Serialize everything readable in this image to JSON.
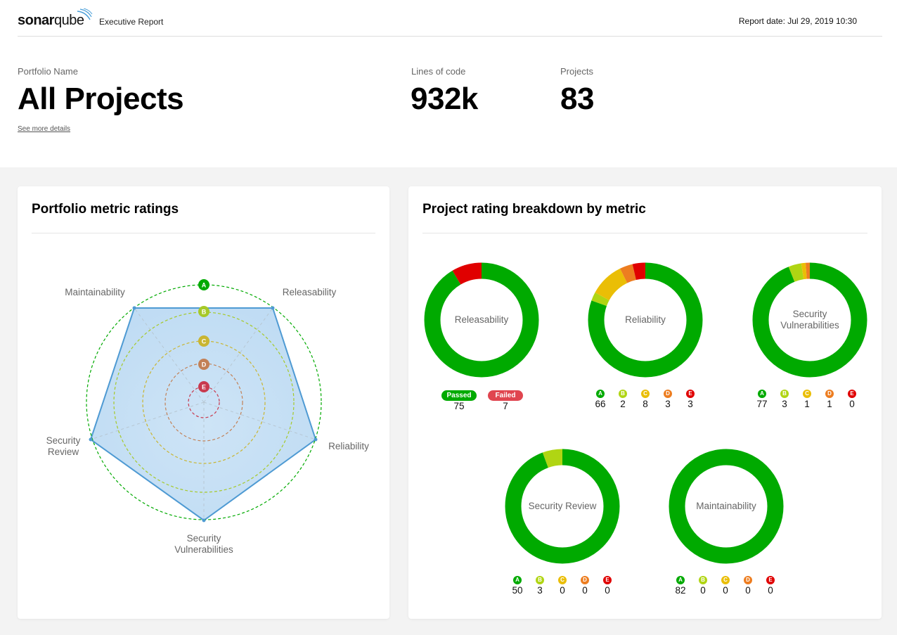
{
  "header": {
    "logo_bold": "sonar",
    "logo_thin": "qube",
    "title": "Executive Report",
    "report_date": "Report date: Jul 29, 2019 10:30"
  },
  "portfolio": {
    "name_label": "Portfolio Name",
    "name": "All Projects",
    "details_link": "See more details",
    "loc_label": "Lines of code",
    "loc_value": "932k",
    "projects_label": "Projects",
    "projects_value": "83"
  },
  "ratings_card": {
    "title": "Portfolio metric ratings",
    "axes": [
      "Releasability",
      "Reliability",
      "Security Vulnerabilities",
      "Security Review",
      "Maintainability"
    ],
    "grades": [
      "A",
      "B",
      "C",
      "D",
      "E"
    ],
    "values": [
      "A",
      "A",
      "A",
      "A",
      "A"
    ]
  },
  "breakdown_card": {
    "title": "Project rating breakdown by metric",
    "colors": {
      "A": "#00aa00",
      "B": "#b0d513",
      "C": "#eabe06",
      "D": "#ed7d20",
      "E": "#e00000"
    },
    "releasability": {
      "label": "Releasability",
      "passed_label": "Passed",
      "failed_label": "Failed",
      "passed": 75,
      "failed": 7
    },
    "reliability": {
      "label": "Reliability",
      "counts": [
        66,
        2,
        8,
        3,
        3
      ]
    },
    "security_vulnerabilities": {
      "label": "Security Vulnerabilities",
      "counts": [
        77,
        3,
        1,
        1,
        0
      ]
    },
    "security_review": {
      "label": "Security Review",
      "counts": [
        50,
        3,
        0,
        0,
        0
      ]
    },
    "maintainability": {
      "label": "Maintainability",
      "counts": [
        82,
        0,
        0,
        0,
        0
      ]
    }
  }
}
